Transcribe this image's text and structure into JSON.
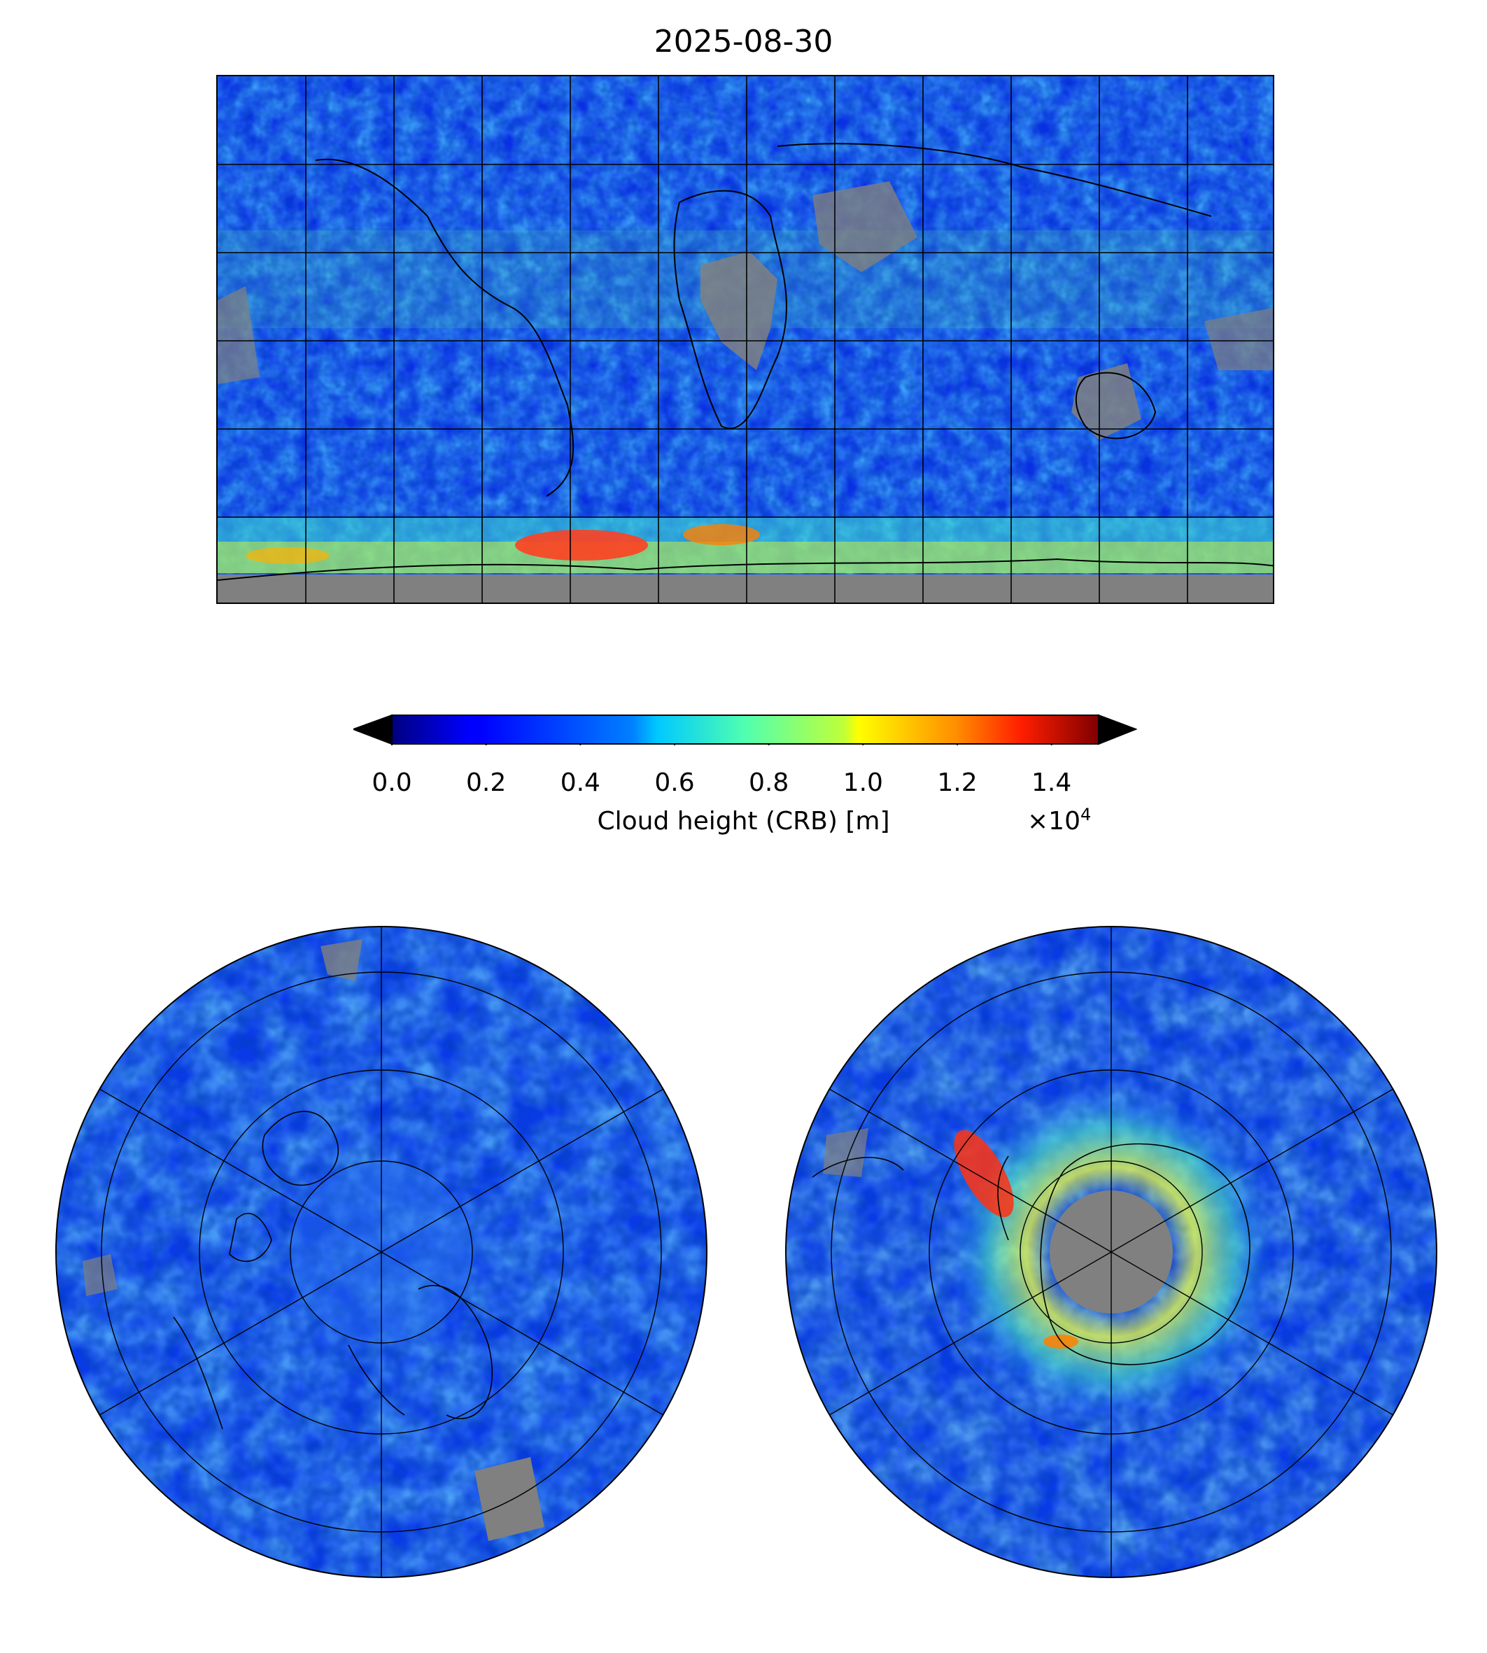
{
  "title": "2025-08-30",
  "colorbar": {
    "label": "Cloud height (CRB) [m]",
    "multiplier": "×10",
    "multiplier_exp": "4",
    "ticks": [
      "0.0",
      "0.2",
      "0.4",
      "0.6",
      "0.8",
      "1.0",
      "1.2",
      "1.4"
    ],
    "range": [
      0.0,
      1.5
    ],
    "colormap": "jet",
    "under_color": "#c8c8c8",
    "over_color": "#404040",
    "nodata_color": "#808080"
  },
  "panels": {
    "global": {
      "projection": "plate-carree",
      "gridlines": true,
      "coastlines": true
    },
    "north_polar": {
      "projection": "north-polar-stereographic",
      "gridlines": true,
      "coastlines": true
    },
    "south_polar": {
      "projection": "south-polar-stereographic",
      "gridlines": true,
      "coastlines": true
    }
  }
}
